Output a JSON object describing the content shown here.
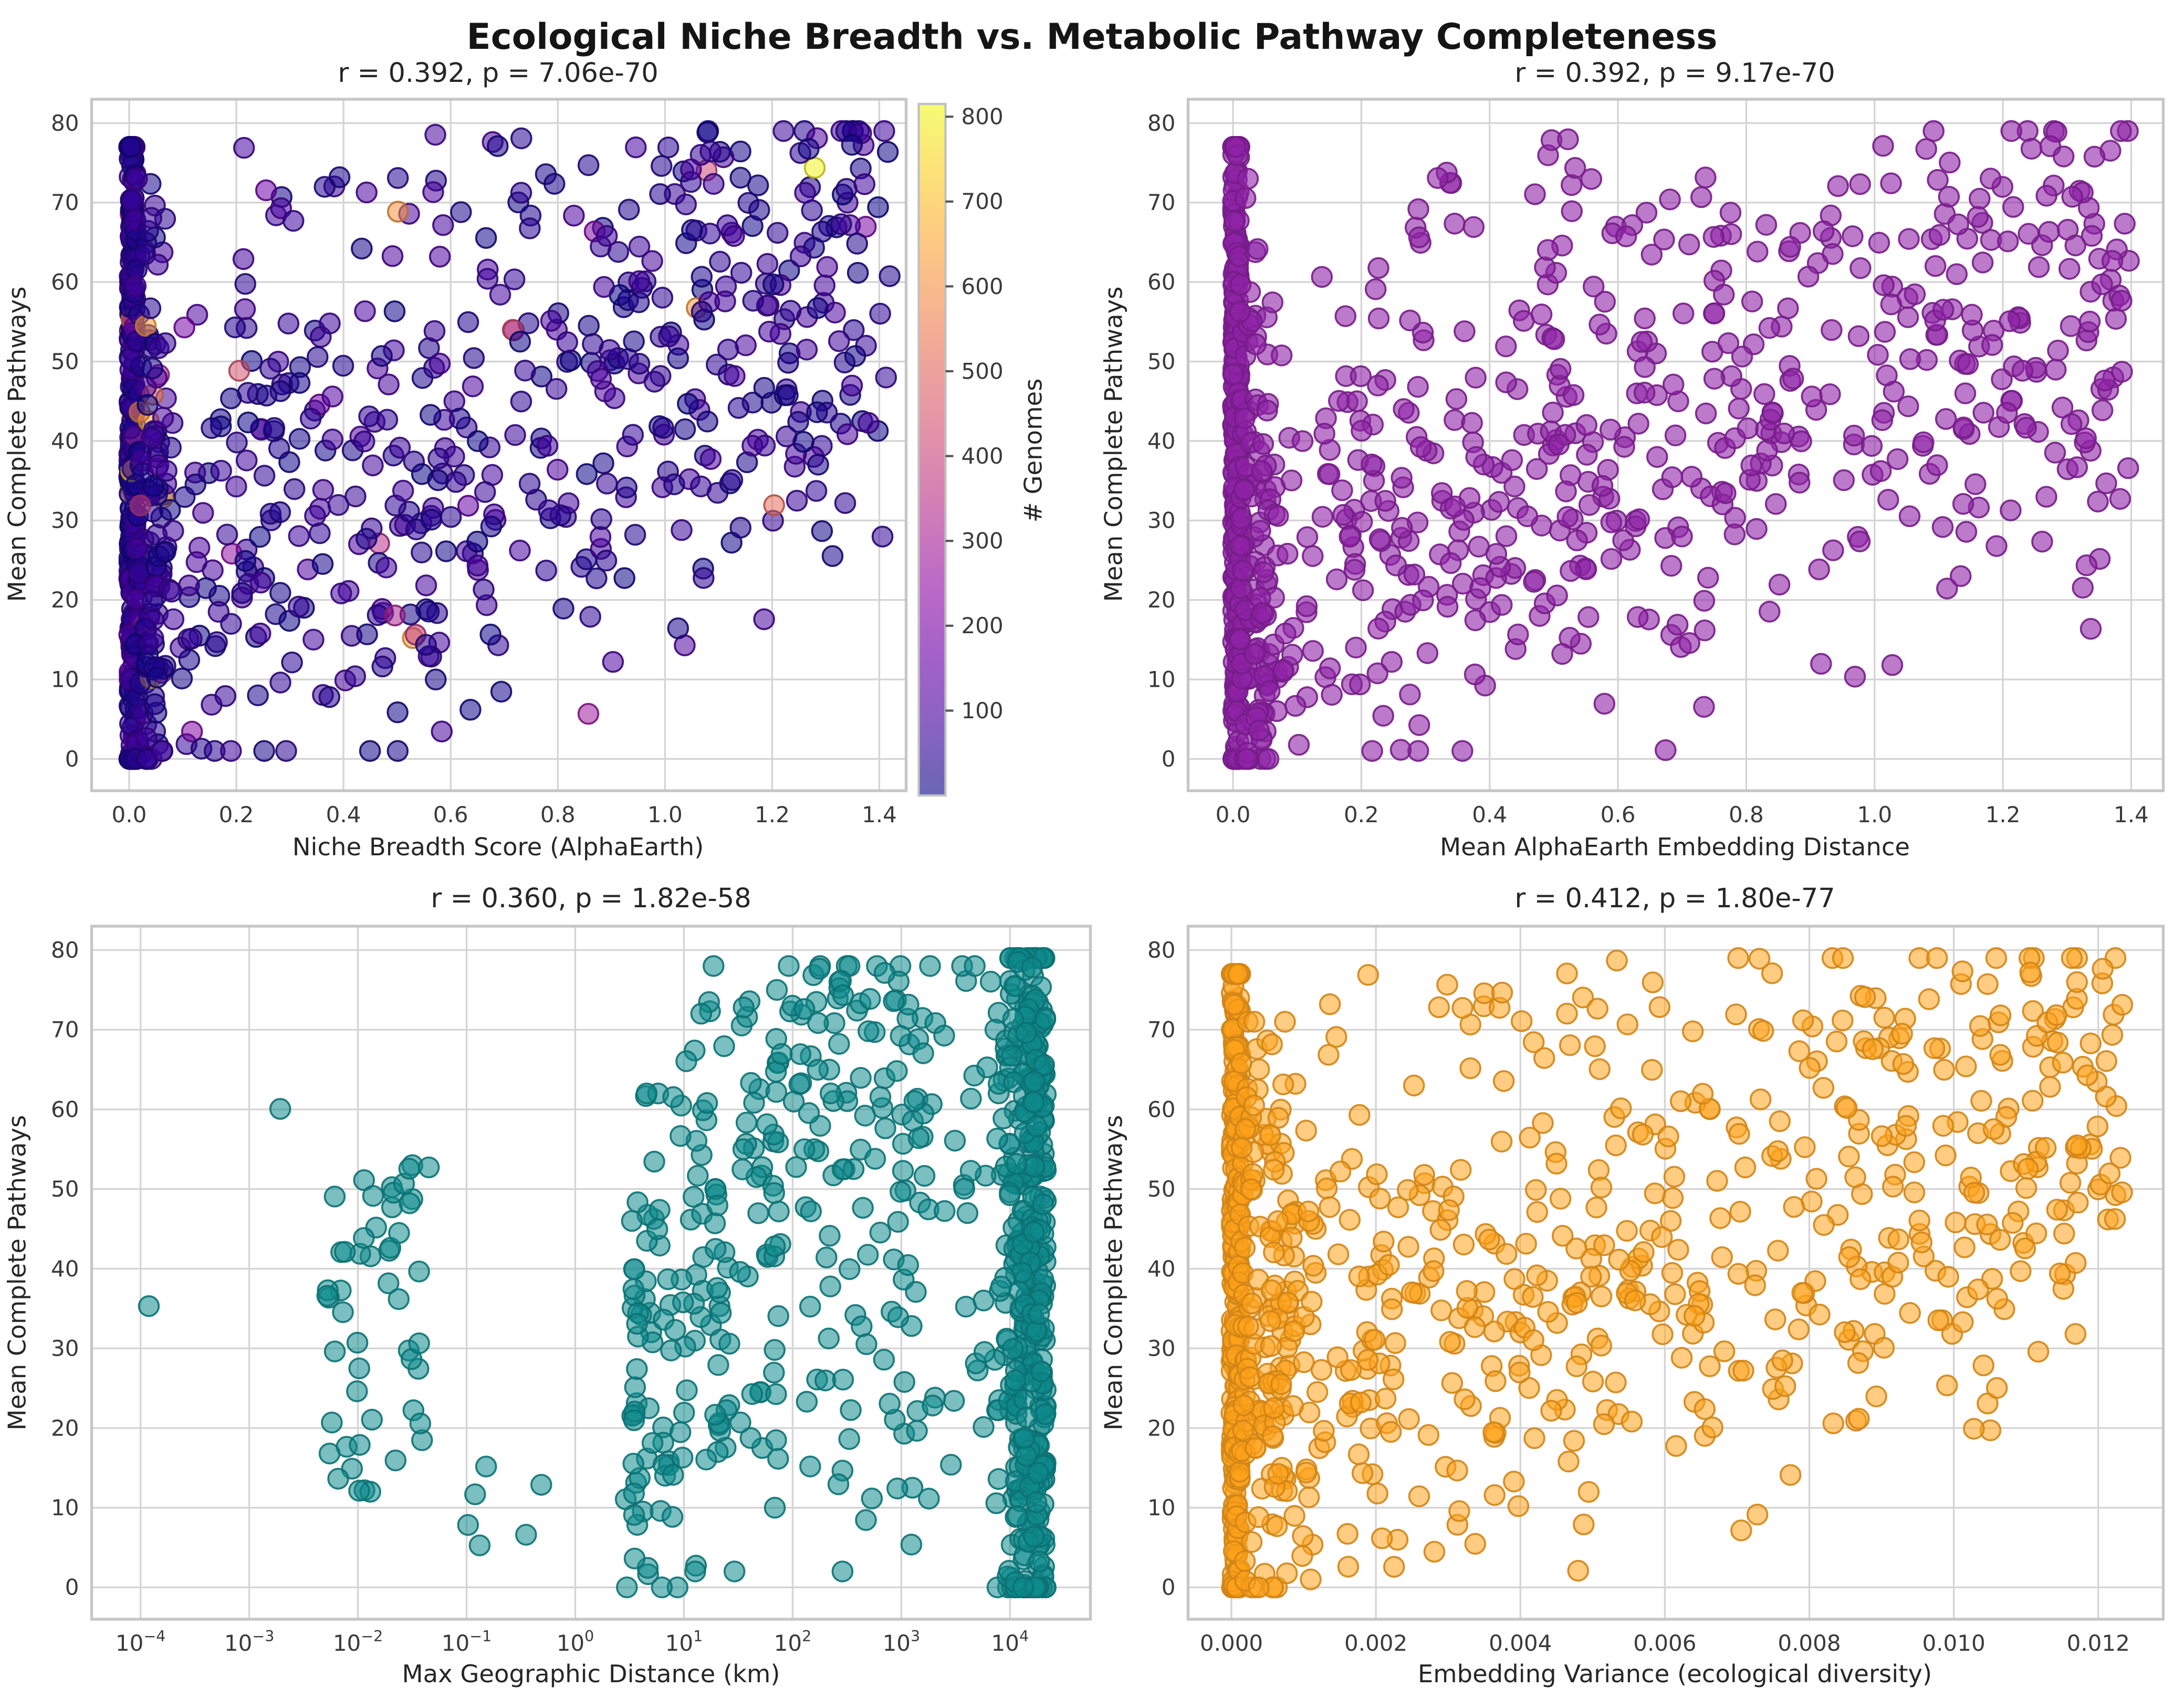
{
  "figure": {
    "title": "Ecological Niche Breadth vs. Metabolic Pathway Completeness",
    "background": "#ffffff",
    "grid_color": "#d4d4d4",
    "spine_color": "#c6c6c6"
  },
  "colorbar": {
    "label": "# Genomes",
    "ticks": [
      100,
      200,
      300,
      400,
      500,
      600,
      700,
      800
    ],
    "vmin": 0,
    "vmax": 815,
    "alpha": 0.62,
    "stops": [
      [
        0.0,
        "#0d0887"
      ],
      [
        0.1,
        "#41049d"
      ],
      [
        0.2,
        "#6a00a8"
      ],
      [
        0.3,
        "#8f0da4"
      ],
      [
        0.4,
        "#b12a90"
      ],
      [
        0.5,
        "#cc4778"
      ],
      [
        0.6,
        "#e16462"
      ],
      [
        0.7,
        "#f2844b"
      ],
      [
        0.8,
        "#fca636"
      ],
      [
        0.9,
        "#fcce25"
      ],
      [
        1.0,
        "#f0f921"
      ]
    ]
  },
  "chart_data": [
    {
      "type": "scatter",
      "panel": "top-left",
      "title": "r = 0.392, p = 7.06e-70",
      "stats": {
        "r": 0.392,
        "p": "7.06e-70"
      },
      "xlabel": "Niche Breadth Score (AlphaEarth)",
      "ylabel": "Mean Complete Pathways",
      "xlim": [
        -0.07,
        1.45
      ],
      "ylim": [
        -4,
        83
      ],
      "xtick_values": [
        0.0,
        0.2,
        0.4,
        0.6,
        0.8,
        1.0,
        1.2,
        1.4
      ],
      "xtick_labels": [
        "0.0",
        "0.2",
        "0.4",
        "0.6",
        "0.8",
        "1.0",
        "1.2",
        "1.4"
      ],
      "yticks": [
        0,
        10,
        20,
        30,
        40,
        50,
        60,
        70,
        80
      ],
      "log_x": false,
      "color_by": "# Genomes",
      "colormap": "plasma",
      "cmap": {
        "vmin": 0,
        "vmax": 815,
        "tail_p": 0.955,
        "base_max": 110,
        "tail_max": 815
      },
      "alpha": 0.55,
      "marker_r": 6.3,
      "seed": 101,
      "n_points": 975,
      "clusters": [
        {
          "n": 300,
          "x": [
            0.0,
            0.012
          ],
          "y": [
            0,
            77
          ],
          "corr": 0
        },
        {
          "n": 130,
          "x": [
            0.012,
            0.07
          ],
          "xpow": 1.3,
          "y": [
            0,
            73
          ],
          "corr": 0.15
        },
        {
          "n": 500,
          "x": [
            0.04,
            1.42
          ],
          "xpow": 1.15,
          "y": [
            1,
            79
          ],
          "corr": 0.45
        },
        {
          "n": 45,
          "x": [
            0.2,
            1.38
          ],
          "y": [
            63,
            79
          ],
          "corr": 0.15
        }
      ]
    },
    {
      "type": "scatter",
      "panel": "top-right",
      "title": "r = 0.392, p = 9.17e-70",
      "stats": {
        "r": 0.392,
        "p": "9.17e-70"
      },
      "xlabel": "Mean AlphaEarth Embedding Distance",
      "ylabel": "Mean Complete Pathways",
      "xlim": [
        -0.07,
        1.45
      ],
      "ylim": [
        -4,
        83
      ],
      "xtick_values": [
        0.0,
        0.2,
        0.4,
        0.6,
        0.8,
        1.0,
        1.2,
        1.4
      ],
      "xtick_labels": [
        "0.0",
        "0.2",
        "0.4",
        "0.6",
        "0.8",
        "1.0",
        "1.2",
        "1.4"
      ],
      "yticks": [
        0,
        10,
        20,
        30,
        40,
        50,
        60,
        70,
        80
      ],
      "log_x": false,
      "color": "#9023a6",
      "alpha": 0.6,
      "marker_r": 6.3,
      "seed": 202,
      "n_points": 995,
      "clusters": [
        {
          "n": 310,
          "x": [
            0.0,
            0.01
          ],
          "y": [
            0,
            77
          ],
          "corr": 0
        },
        {
          "n": 130,
          "x": [
            0.01,
            0.07
          ],
          "xpow": 1.3,
          "y": [
            0,
            73
          ],
          "corr": 0.15
        },
        {
          "n": 510,
          "x": [
            0.04,
            1.4
          ],
          "xpow": 1.1,
          "y": [
            1,
            79
          ],
          "corr": 0.45
        },
        {
          "n": 45,
          "x": [
            0.25,
            1.35
          ],
          "y": [
            63,
            79
          ],
          "corr": 0.15
        }
      ]
    },
    {
      "type": "scatter",
      "panel": "bottom-left",
      "title": "r = 0.360, p = 1.82e-58",
      "stats": {
        "r": 0.36,
        "p": "1.82e-58"
      },
      "xlabel": "Max Geographic Distance (km)",
      "ylabel": "Mean Complete Pathways",
      "xlim": [
        -4.45,
        4.74
      ],
      "ylim": [
        -4,
        83
      ],
      "xtick_exps": [
        -4,
        -3,
        -2,
        -1,
        0,
        1,
        2,
        3,
        4
      ],
      "yticks": [
        0,
        10,
        20,
        30,
        40,
        50,
        60,
        70,
        80
      ],
      "log_x": true,
      "color": "#0f8a8c",
      "alpha": 0.55,
      "marker_r": 6.3,
      "seed": 303,
      "n_points": 827,
      "clusters": [
        {
          "n": 440,
          "x": [
            3.85,
            4.33
          ],
          "xpow": 0.5,
          "y": [
            0,
            79
          ],
          "corr": 0
        },
        {
          "n": 170,
          "x": [
            1.0,
            3.85
          ],
          "y": [
            2,
            78
          ],
          "corr": 0.18
        },
        {
          "n": 55,
          "x": [
            0.45,
            1.0
          ],
          "y": [
            0,
            62
          ],
          "corr": 0
        },
        {
          "n": 50,
          "x": [
            -2.3,
            -1.4
          ],
          "y": [
            12,
            53
          ],
          "corr": 0
        },
        {
          "n": 6,
          "x": [
            -1.0,
            -0.3
          ],
          "y": [
            4,
            22
          ],
          "corr": 0
        },
        {
          "n": 16,
          "x": [
            0.52,
            0.58
          ],
          "y": [
            0,
            46
          ],
          "corr": 0
        },
        {
          "n": 14,
          "x": [
            1.28,
            1.34
          ],
          "y": [
            12,
            50
          ],
          "corr": 0
        },
        {
          "n": 18,
          "x": [
            1.82,
            1.88
          ],
          "y": [
            10,
            75
          ],
          "corr": 0
        },
        {
          "n": 55,
          "x": [
            1.5,
            3.3
          ],
          "y": [
            55,
            78
          ],
          "corr": 0
        },
        {
          "n": 1,
          "x": [
            -3.93,
            -3.92
          ],
          "y": [
            35,
            35.4
          ],
          "corr": 0
        },
        {
          "n": 1,
          "x": [
            -2.72,
            -2.71
          ],
          "y": [
            59.8,
            60.2
          ],
          "corr": 0
        },
        {
          "n": 1,
          "x": [
            -1.36,
            -1.34
          ],
          "y": [
            52.3,
            52.8
          ],
          "corr": 0
        }
      ]
    },
    {
      "type": "scatter",
      "panel": "bottom-right",
      "title": "r = 0.412, p = 1.80e-77",
      "stats": {
        "r": 0.412,
        "p": "1.80e-77"
      },
      "xlabel": "Embedding Variance (ecological diversity)",
      "ylabel": "Mean Complete Pathways",
      "xlim": [
        -0.0006,
        0.0129
      ],
      "ylim": [
        -4,
        83
      ],
      "xtick_values": [
        0,
        0.002,
        0.004,
        0.006,
        0.008,
        0.01,
        0.012
      ],
      "xtick_labels": [
        "0.000",
        "0.002",
        "0.004",
        "0.006",
        "0.008",
        "0.010",
        "0.012"
      ],
      "yticks": [
        0,
        10,
        20,
        30,
        40,
        50,
        60,
        70,
        80
      ],
      "log_x": false,
      "color": "#ffa21b",
      "alpha": 0.55,
      "marker_r": 6.3,
      "seed": 404,
      "n_points": 1015,
      "clusters": [
        {
          "n": 330,
          "x": [
            0.0,
            0.00012
          ],
          "y": [
            0,
            77
          ],
          "corr": 0
        },
        {
          "n": 140,
          "x": [
            0.00012,
            0.0009
          ],
          "xpow": 1.3,
          "y": [
            0,
            71
          ],
          "corr": 0.1
        },
        {
          "n": 500,
          "x": [
            0.0005,
            0.0124
          ],
          "xpow": 1.1,
          "y": [
            1,
            79
          ],
          "corr": 0.42
        },
        {
          "n": 45,
          "x": [
            0.001,
            0.0121
          ],
          "y": [
            63,
            79
          ],
          "corr": 0.15
        }
      ]
    }
  ]
}
